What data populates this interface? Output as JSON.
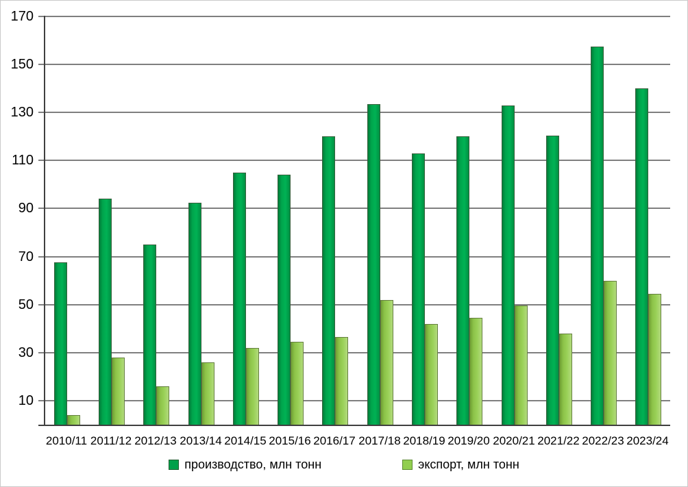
{
  "chart_data": {
    "type": "bar",
    "title": "",
    "xlabel": "",
    "ylabel": "",
    "categories": [
      "2010/11",
      "2011/12",
      "2012/13",
      "2013/14",
      "2014/15",
      "2015/16",
      "2016/17",
      "2017/18",
      "2018/19",
      "2019/20",
      "2020/21",
      "2021/22",
      "2022/23",
      "2023/24"
    ],
    "series": [
      {
        "name": "производство, млн тонн",
        "color": "#00a94e",
        "values": [
          67.5,
          94,
          75,
          92.5,
          105,
          104,
          120,
          133.5,
          113,
          120,
          133,
          120.5,
          157.5,
          140
        ]
      },
      {
        "name": "экспорт, млн тонн",
        "color": "#92ce4e",
        "values": [
          4,
          28,
          16,
          26,
          32,
          34.5,
          36.5,
          52,
          42,
          44.5,
          49.5,
          38,
          60,
          54.5
        ]
      }
    ],
    "ylim": [
      0,
      170
    ],
    "y_ticks": [
      10,
      30,
      50,
      70,
      90,
      110,
      130,
      150,
      170
    ],
    "grid": true,
    "gridline_color": "#7f7f7f",
    "axis_color": "#3f3f3f",
    "legend_position": "bottom"
  }
}
